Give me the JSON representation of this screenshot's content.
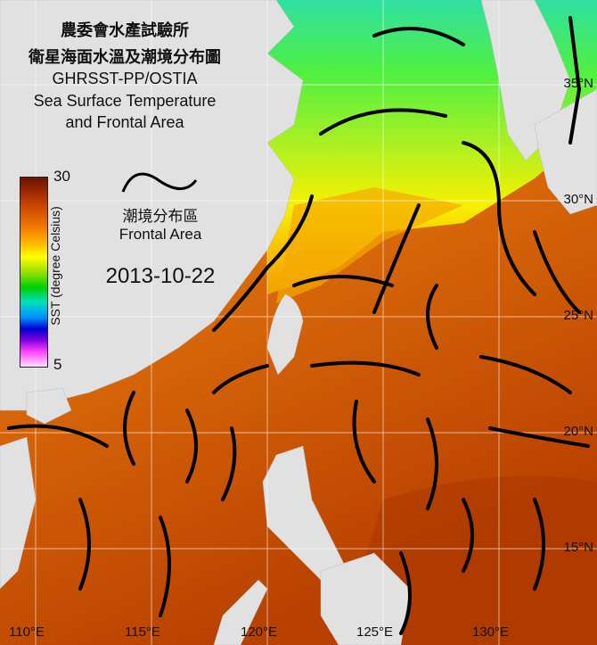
{
  "title": {
    "line1": "農委會水產試驗所",
    "line2": "衛星海面水溫及潮境分布圖",
    "line3": "GHRSST-PP/OSTIA",
    "line4": "Sea Surface Temperature",
    "line5": "and Frontal Area"
  },
  "legend": {
    "colorbar_max": "30",
    "colorbar_min": "5",
    "colorbar_label": "SST (degree Celsius)",
    "front_label_zh": "潮境分布區",
    "front_label_en": "Frontal Area"
  },
  "date": "2013-10-22",
  "latitude_labels": [
    "35°N",
    "30°N",
    "25°N",
    "20°N",
    "15°N"
  ],
  "longitude_labels": [
    "110°E",
    "115°E",
    "120°E",
    "125°E",
    "130°E"
  ],
  "colors": {
    "land": "#e1e1e1",
    "front": "#000000",
    "warm": "#c84a08",
    "cold": "#40e040"
  }
}
